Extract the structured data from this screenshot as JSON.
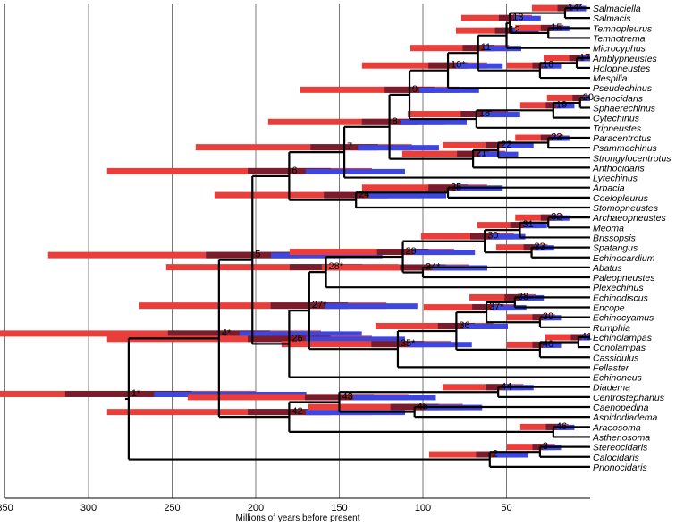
{
  "axis": {
    "title": "Millions of years before present",
    "ticks": [
      350,
      300,
      250,
      200,
      150,
      100,
      50
    ],
    "range": [
      355,
      0
    ]
  },
  "taxa": [
    "Salmaciella",
    "Salmacis",
    "Temnopleurus",
    "Temnotrema",
    "Microcyphus",
    "Amblypneustes",
    "Holopneustes",
    "Mespilia",
    "Pseudechinus",
    "Genocidaris",
    "Sphaerechinus",
    "Cytechinus",
    "Tripneustes",
    "Paracentrotus",
    "Psammechinus",
    "Strongylocentrotus",
    "Anthocidaris",
    "Lytechinus",
    "Arbacia",
    "Coelopleurus",
    "Stomopneustes",
    "Archaeopneustes",
    "Meoma",
    "Brissopsis",
    "Spatangus",
    "Echinocardium",
    "Abatus",
    "Paleopneustes",
    "Plexechinus",
    "Echinodiscus",
    "Encope",
    "Echinocyamus",
    "Rumphia",
    "Echinolampas",
    "Conolampas",
    "Cassidulus",
    "Fellaster",
    "Echinoneus",
    "Diadema",
    "Centrostephanus",
    "Caenopedina",
    "Aspidodiadema",
    "Araeosoma",
    "Asthenosoma",
    "Stereocidaris",
    "Calocidaris",
    "Prionocidaris"
  ],
  "nodes": [
    {
      "label": "1*",
      "age": 276,
      "children": [
        "N2",
        "N4"
      ]
    },
    {
      "label": "2",
      "age": 60,
      "children": [
        "Prionocidaris",
        "N3"
      ]
    },
    {
      "label": "3",
      "age": 30,
      "children": [
        "Stereocidaris",
        "Calocidaris"
      ]
    },
    {
      "label": "4*",
      "age": 222,
      "children": [
        "N5",
        "N42"
      ]
    },
    {
      "label": "5",
      "age": 202,
      "children": [
        "N6",
        "N26"
      ]
    },
    {
      "label": "6",
      "age": 180,
      "children": [
        "N7",
        "N24"
      ]
    },
    {
      "label": "7",
      "age": 147,
      "children": [
        "Lytechinus",
        "N8"
      ]
    },
    {
      "label": "8",
      "age": 120,
      "children": [
        "N9",
        "N21"
      ]
    },
    {
      "label": "9",
      "age": 108,
      "children": [
        "N10",
        "N18"
      ]
    },
    {
      "label": "10*",
      "age": 85,
      "children": [
        "Pseudechinus",
        "N11"
      ]
    },
    {
      "label": "11",
      "age": 67,
      "children": [
        "N12",
        "N16"
      ]
    },
    {
      "label": "12",
      "age": 50,
      "children": [
        "Microcyphus",
        "N13"
      ]
    },
    {
      "label": "13",
      "age": 48,
      "children": [
        "N14",
        "N15"
      ]
    },
    {
      "label": "14*",
      "age": 15,
      "children": [
        "Salmaciella",
        "Salmacis"
      ]
    },
    {
      "label": "15",
      "age": 25,
      "children": [
        "Temnopleurus",
        "Temnotrema"
      ]
    },
    {
      "label": "16",
      "age": 30,
      "children": [
        "Mespilia",
        "N17"
      ]
    },
    {
      "label": "17",
      "age": 8,
      "children": [
        "Amblypneustes",
        "Holopneustes"
      ]
    },
    {
      "label": "18",
      "age": 68,
      "children": [
        "Tripneustes",
        "N19"
      ]
    },
    {
      "label": "19",
      "age": 22,
      "children": [
        "Cytechinus",
        "N20"
      ]
    },
    {
      "label": "20",
      "age": 6,
      "children": [
        "Genocidaris",
        "Sphaerechinus"
      ]
    },
    {
      "label": "21",
      "age": 70,
      "children": [
        "Anthocidaris",
        "N22"
      ]
    },
    {
      "label": "22",
      "age": 55,
      "children": [
        "Strongylocentrotus",
        "N23"
      ]
    },
    {
      "label": "23",
      "age": 25,
      "children": [
        "Paracentrotus",
        "Psammechinus"
      ]
    },
    {
      "label": "24",
      "age": 140,
      "children": [
        "Stomopneustes",
        "N25"
      ]
    },
    {
      "label": "25",
      "age": 85,
      "children": [
        "Arbacia",
        "Coelopleurus"
      ]
    },
    {
      "label": "26",
      "age": 180,
      "children": [
        "N27",
        "Echinoneus"
      ]
    },
    {
      "label": "27*",
      "age": 168,
      "children": [
        "N28",
        "N35"
      ]
    },
    {
      "label": "28*",
      "age": 158,
      "children": [
        "Plexechinus",
        "N29"
      ]
    },
    {
      "label": "29",
      "age": 112,
      "children": [
        "N30",
        "N34"
      ]
    },
    {
      "label": "30",
      "age": 63,
      "children": [
        "N31",
        "N33"
      ]
    },
    {
      "label": "31",
      "age": 42,
      "children": [
        "N32",
        "Brissopsis"
      ]
    },
    {
      "label": "32",
      "age": 25,
      "children": [
        "Archaeopneustes",
        "Meoma"
      ]
    },
    {
      "label": "33",
      "age": 35,
      "children": [
        "Spatangus",
        "Echinocardium"
      ]
    },
    {
      "label": "34*",
      "age": 100,
      "children": [
        "Abatus",
        "Paleopneustes"
      ]
    },
    {
      "label": "35*",
      "age": 115,
      "children": [
        "Fellaster",
        "N36"
      ]
    },
    {
      "label": "36",
      "age": 80,
      "children": [
        "N37",
        "N40"
      ]
    },
    {
      "label": "37*",
      "age": 62,
      "children": [
        "N38",
        "N39"
      ]
    },
    {
      "label": "38",
      "age": 45,
      "children": [
        "Echinodiscus",
        "Encope"
      ]
    },
    {
      "label": "39",
      "age": 30,
      "children": [
        "Echinocyamus",
        "Rumphia"
      ]
    },
    {
      "label": "40",
      "age": 30,
      "children": [
        "Cassidulus",
        "N41"
      ]
    },
    {
      "label": "41",
      "age": 7,
      "children": [
        "Echinolampas",
        "Conolampas"
      ]
    },
    {
      "label": "42",
      "age": 180,
      "children": [
        "N43",
        "N46"
      ]
    },
    {
      "label": "43",
      "age": 150,
      "children": [
        "N44",
        "N45"
      ]
    },
    {
      "label": "44",
      "age": 55,
      "children": [
        "Diadema",
        "Centrostephanus"
      ]
    },
    {
      "label": "45",
      "age": 105,
      "children": [
        "Caenopedina",
        "Aspidodiadema"
      ]
    },
    {
      "label": "46",
      "age": 22,
      "children": [
        "Araeosoma",
        "Asthenosoma"
      ]
    }
  ],
  "colors": {
    "red_bar": "#ea3e3a",
    "dark_bar": "#7a1c2c",
    "blue_bar": "#3b47e0",
    "branch": "#000000",
    "grid": "#555555"
  }
}
